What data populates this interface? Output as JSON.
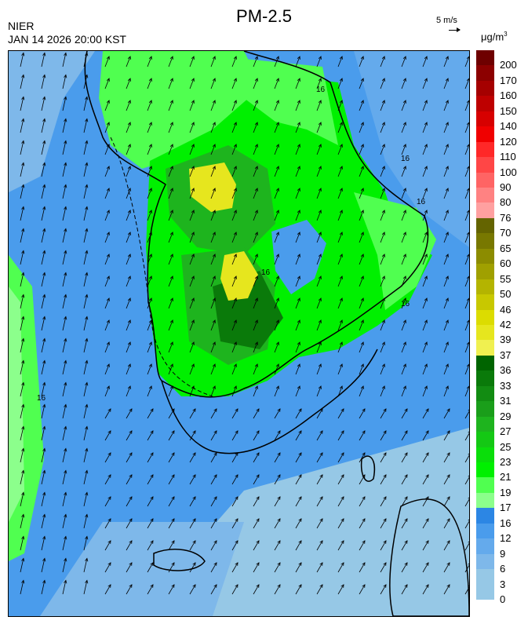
{
  "title": "PM-2.5",
  "agency": "NIER",
  "datetime": "JAN 14 2026 20:00 KST",
  "wind_scale_label": "5 m/s",
  "units": {
    "base": "μg/m",
    "exp": "3"
  },
  "contour_labels": [
    "16",
    "16",
    "16",
    "16",
    "16",
    "16"
  ],
  "legend": [
    {
      "label": "200",
      "color": "#6e0000"
    },
    {
      "label": "170",
      "color": "#8c0000"
    },
    {
      "label": "160",
      "color": "#a50000"
    },
    {
      "label": "150",
      "color": "#be0000"
    },
    {
      "label": "140",
      "color": "#d70000"
    },
    {
      "label": "120",
      "color": "#f00000"
    },
    {
      "label": "110",
      "color": "#ff2828"
    },
    {
      "label": "100",
      "color": "#ff4646"
    },
    {
      "label": "90",
      "color": "#ff6464"
    },
    {
      "label": "80",
      "color": "#ff8282"
    },
    {
      "label": "76",
      "color": "#ffa0a0"
    },
    {
      "label": "70",
      "color": "#646400"
    },
    {
      "label": "65",
      "color": "#787800"
    },
    {
      "label": "60",
      "color": "#8c8c00"
    },
    {
      "label": "55",
      "color": "#a0a000"
    },
    {
      "label": "50",
      "color": "#b4b400"
    },
    {
      "label": "46",
      "color": "#c8c800"
    },
    {
      "label": "42",
      "color": "#dcdc00"
    },
    {
      "label": "39",
      "color": "#e6e61e"
    },
    {
      "label": "37",
      "color": "#f0f050"
    },
    {
      "label": "36",
      "color": "#006400"
    },
    {
      "label": "33",
      "color": "#0a7a0a"
    },
    {
      "label": "31",
      "color": "#128c12"
    },
    {
      "label": "29",
      "color": "#1a9e1a"
    },
    {
      "label": "27",
      "color": "#1eb41e"
    },
    {
      "label": "25",
      "color": "#14c814"
    },
    {
      "label": "23",
      "color": "#0ade0a"
    },
    {
      "label": "21",
      "color": "#00f000"
    },
    {
      "label": "19",
      "color": "#50ff50"
    },
    {
      "label": "17",
      "color": "#8cff8c"
    },
    {
      "label": "16",
      "color": "#2c86e4"
    },
    {
      "label": "12",
      "color": "#4a9cec"
    },
    {
      "label": "9",
      "color": "#64aaec"
    },
    {
      "label": "6",
      "color": "#7eb8ea"
    },
    {
      "label": "3",
      "color": "#96c8e6"
    },
    {
      "label": "0",
      "color": "#96c8e6"
    }
  ]
}
